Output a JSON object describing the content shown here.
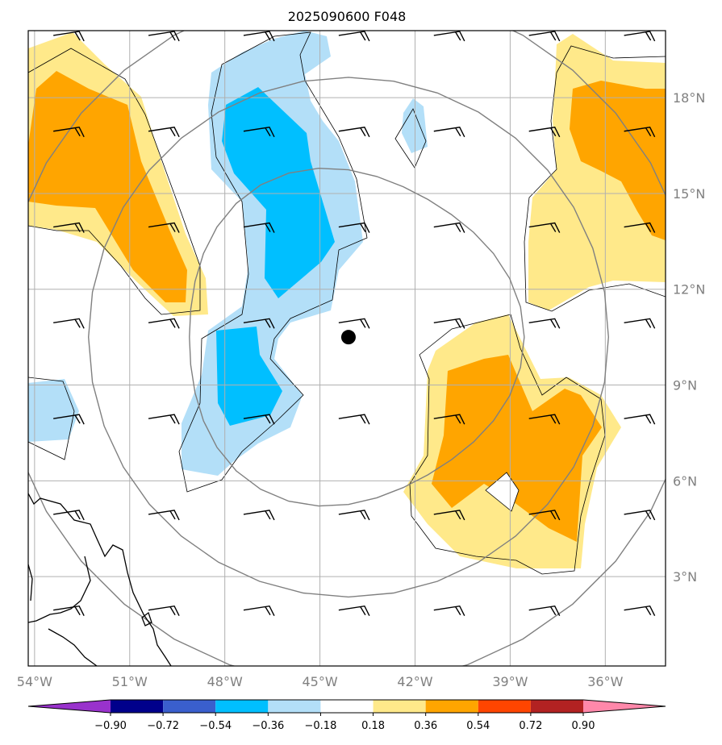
{
  "title": "2025090600 F048",
  "map": {
    "lon_range": [
      -54.2,
      -34.1
    ],
    "lat_range": [
      0.2,
      20.1
    ],
    "grid_step_deg": 3,
    "lon_labels": [
      {
        "value": -54,
        "label": "54°W"
      },
      {
        "value": -51,
        "label": "51°W"
      },
      {
        "value": -48,
        "label": "48°W"
      },
      {
        "value": -45,
        "label": "45°W"
      },
      {
        "value": -42,
        "label": "42°W"
      },
      {
        "value": -39,
        "label": "39°W"
      },
      {
        "value": -36,
        "label": "36°W"
      }
    ],
    "lat_labels": [
      {
        "value": 3,
        "label": "3°N"
      },
      {
        "value": 6,
        "label": "6°N"
      },
      {
        "value": 9,
        "label": "9°N"
      },
      {
        "value": 12,
        "label": "12°N"
      },
      {
        "value": 15,
        "label": "15°N"
      },
      {
        "value": 18,
        "label": "18°N"
      }
    ],
    "storm_center": {
      "lon": -44.1,
      "lat": 10.5
    },
    "range_ring_radii_deg": [
      5.5,
      8.2,
      11.0
    ],
    "barb_lons": [
      -53,
      -50,
      -47,
      -44,
      -41,
      -38,
      -35
    ],
    "barb_lats": [
      2,
      5,
      8,
      11,
      14,
      17,
      20
    ],
    "fill_colors": {
      "pos_1": "#ffe98a",
      "pos_2": "#ffa500",
      "neg_1": "#b3dff8",
      "neg_2": "#00bfff"
    },
    "contour_color": "#000000",
    "ring_color": "#808080",
    "grid_color": "#b0b0b0"
  },
  "colorbar": {
    "levels": [
      "−0.90",
      "−0.72",
      "−0.54",
      "−0.36",
      "−0.18",
      "0.18",
      "0.36",
      "0.54",
      "0.72",
      "0.90"
    ],
    "colors": [
      "#9932cc",
      "#00008b",
      "#3a5fcd",
      "#00bfff",
      "#b3dff8",
      "#ffffff",
      "#ffe98a",
      "#ffa500",
      "#ff4500",
      "#b22222",
      "#ff88aa"
    ]
  }
}
